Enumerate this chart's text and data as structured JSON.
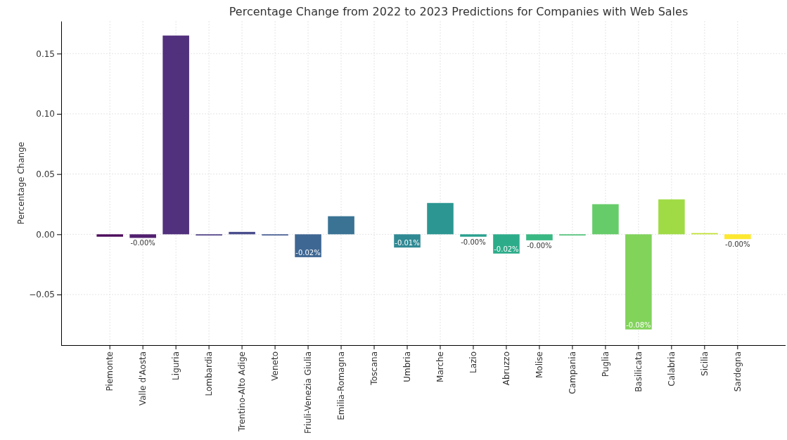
{
  "chart_data": {
    "type": "bar",
    "title": "Percentage Change from 2022 to 2023 Predictions for Companies with Web Sales",
    "ylabel": "Percentage Change",
    "categories": [
      "Piemonte",
      "Valle d'Aosta",
      "Liguria",
      "Lombardia",
      "Trentino-Alto Adige",
      "Veneto",
      "Friuli-Venezia Giulia",
      "Emilia-Romagna",
      "Toscana",
      "Umbria",
      "Marche",
      "Lazio",
      "Abruzzo",
      "Molise",
      "Campania",
      "Puglia",
      "Basilicata",
      "Calabria",
      "Sicilia",
      "Sardegna"
    ],
    "values": [
      -0.002,
      -0.003,
      0.165,
      -0.001,
      0.002,
      -0.001,
      -0.019,
      0.015,
      0,
      -0.011,
      0.026,
      -0.002,
      -0.016,
      -0.005,
      -0.001,
      0.025,
      -0.079,
      0.029,
      0.001,
      -0.004
    ],
    "value_labels": [
      null,
      "-0.00%",
      null,
      null,
      null,
      null,
      "-0.02%",
      null,
      null,
      "-0.01%",
      null,
      "-0.00%",
      "-0.02%",
      "-0.00%",
      null,
      null,
      "-0.08%",
      null,
      null,
      "-0.00%"
    ],
    "colors": [
      "#440154",
      "#481467",
      "#482576",
      "#463480",
      "#414487",
      "#3b528b",
      "#355f8d",
      "#2f6c8e",
      "#2a788e",
      "#25848e",
      "#21918c",
      "#1e9c89",
      "#22a884",
      "#2fb47c",
      "#44bf70",
      "#5ec962",
      "#7ad151",
      "#9bd93c",
      "#bddf26",
      "#fde725"
    ],
    "ylim": [
      -0.092,
      0.177
    ],
    "yticks": [
      {
        "value": -0.05,
        "label": "−0.05"
      },
      {
        "value": 0,
        "label": "0.00"
      },
      {
        "value": 0.05,
        "label": "0.05"
      },
      {
        "value": 0.1,
        "label": "0.10"
      },
      {
        "value": 0.15,
        "label": "0.15"
      }
    ],
    "grid": true
  }
}
